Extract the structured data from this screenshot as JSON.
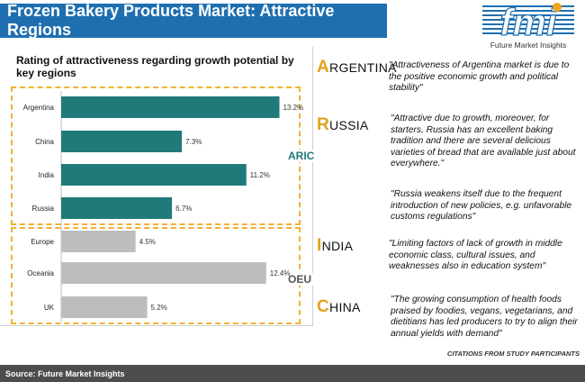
{
  "header": {
    "title": "Frozen Bakery Products Market: Attractive Regions"
  },
  "logo": {
    "letters": "fmi",
    "tagline": "Future Market Insights"
  },
  "chart_data": {
    "type": "bar",
    "orientation": "horizontal",
    "title": "Rating of attractiveness regarding growth potential by key regions",
    "categories": [
      "Argentina",
      "China",
      "India",
      "Russia",
      "Europe",
      "Oceania",
      "UK"
    ],
    "values": [
      13.2,
      7.3,
      11.2,
      6.7,
      4.5,
      12.4,
      5.2
    ],
    "value_labels": [
      "13.2%",
      "7.3%",
      "11.2%",
      "6.7%",
      "4.5%",
      "12.4%",
      "5.2%"
    ],
    "groups": [
      {
        "name": "ARIC",
        "categories": [
          "Argentina",
          "China",
          "India",
          "Russia"
        ],
        "color": "#217a7a"
      },
      {
        "name": "OEU",
        "categories": [
          "Europe",
          "Oceania",
          "UK"
        ],
        "color": "#bdbdbd"
      }
    ],
    "xlim": [
      0,
      13.5
    ],
    "grid": false,
    "legend": "none"
  },
  "group_labels": {
    "aric": "ARIC",
    "oeu": "OEU"
  },
  "countries": [
    {
      "cap": "A",
      "rest": "RGENTINA",
      "quotes": [
        "\"Attractiveness of Argentina market is due to the positive economic growth and political stability\""
      ]
    },
    {
      "cap": "R",
      "rest": "USSIA",
      "quotes": [
        "\"Attractive due to growth, moreover, for starters, Russia has an excellent baking tradition and there are several delicious varieties of bread that are available just about everywhere.\"",
        "\"Russia weakens itself due to the frequent introduction of new policies, e.g. unfavorable customs regulations\""
      ]
    },
    {
      "cap": "I",
      "rest": "NDIA",
      "quotes": [
        "\"Limiting factors of lack of growth in middle economic class, cultural issues, and weaknesses also in education system\""
      ]
    },
    {
      "cap": "C",
      "rest": "HINA",
      "quotes": [
        "\"The growing consumption of health foods praised by foodies, vegans, vegetarians, and dietitians has led producers to try to align their annual yields with demand\""
      ]
    }
  ],
  "citations": "CITATIONS FROM STUDY PARTICIPANTS",
  "footer": {
    "source": "Source: Future Market Insights"
  },
  "colors": {
    "header_bg": "#1f6fb0",
    "aric_bar": "#217a7a",
    "oeu_bar": "#bdbdbd",
    "accent": "#e2a21d",
    "footer_bg": "#4d4d4d"
  }
}
